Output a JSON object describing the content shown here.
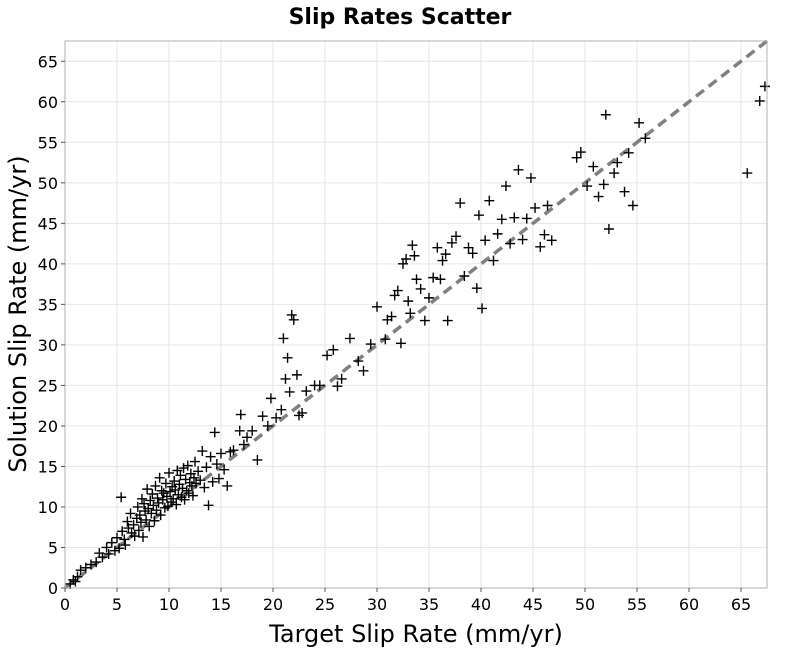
{
  "chart_data": {
    "type": "scatter",
    "title": "Slip Rates Scatter",
    "xlabel": "Target Slip Rate (mm/yr)",
    "ylabel": "Solution Slip Rate (mm/yr)",
    "xlim": [
      0,
      67.5
    ],
    "ylim": [
      0,
      67.5
    ],
    "xticks": [
      0,
      5,
      10,
      15,
      20,
      25,
      30,
      35,
      40,
      45,
      50,
      55,
      60,
      65
    ],
    "yticks": [
      0,
      5,
      10,
      15,
      20,
      25,
      30,
      35,
      40,
      45,
      50,
      55,
      60,
      65
    ],
    "grid": true,
    "marker": "plus",
    "marker_color": "#000000",
    "reference_line": {
      "style": "dashed",
      "color": "#808080",
      "x": [
        0,
        67.5
      ],
      "y": [
        0,
        67.5
      ]
    },
    "series": [
      {
        "points": [
          [
            0.5,
            0.5
          ],
          [
            0.8,
            1.0
          ],
          [
            1.0,
            0.8
          ],
          [
            1.2,
            1.4
          ],
          [
            1.5,
            2.2
          ],
          [
            2.0,
            2.5
          ],
          [
            2.5,
            2.9
          ],
          [
            3.0,
            3.2
          ],
          [
            3.3,
            4.3
          ],
          [
            3.6,
            3.8
          ],
          [
            4.0,
            5.0
          ],
          [
            4.2,
            4.2
          ],
          [
            4.5,
            5.6
          ],
          [
            4.8,
            4.6
          ],
          [
            5.0,
            6.2
          ],
          [
            5.2,
            4.9
          ],
          [
            5.4,
            11.2
          ],
          [
            5.5,
            7.0
          ],
          [
            5.7,
            6.0
          ],
          [
            5.8,
            5.3
          ],
          [
            6.0,
            8.2
          ],
          [
            6.1,
            7.4
          ],
          [
            6.3,
            9.2
          ],
          [
            6.4,
            6.8
          ],
          [
            6.6,
            7.8
          ],
          [
            6.7,
            6.4
          ],
          [
            6.9,
            8.6
          ],
          [
            7.0,
            10.0
          ],
          [
            7.1,
            7.1
          ],
          [
            7.2,
            9.0
          ],
          [
            7.3,
            8.1
          ],
          [
            7.4,
            11.0
          ],
          [
            7.5,
            6.3
          ],
          [
            7.6,
            10.4
          ],
          [
            7.7,
            9.5
          ],
          [
            7.8,
            8.4
          ],
          [
            7.9,
            12.2
          ],
          [
            8.0,
            9.8
          ],
          [
            8.1,
            7.6
          ],
          [
            8.2,
            10.8
          ],
          [
            8.3,
            9.2
          ],
          [
            8.4,
            11.6
          ],
          [
            8.5,
            10.2
          ],
          [
            8.6,
            8.3
          ],
          [
            8.7,
            12.6
          ],
          [
            8.8,
            9.6
          ],
          [
            8.9,
            11.1
          ],
          [
            9.0,
            10.5
          ],
          [
            9.1,
            13.6
          ],
          [
            9.2,
            9.0
          ],
          [
            9.3,
            12.0
          ],
          [
            9.4,
            10.9
          ],
          [
            9.5,
            11.7
          ],
          [
            9.6,
            9.9
          ],
          [
            9.7,
            12.9
          ],
          [
            9.8,
            11.3
          ],
          [
            9.9,
            10.1
          ],
          [
            10.0,
            14.2
          ],
          [
            10.1,
            11.9
          ],
          [
            10.2,
            10.6
          ],
          [
            10.3,
            12.5
          ],
          [
            10.4,
            11.0
          ],
          [
            10.5,
            13.2
          ],
          [
            10.6,
            12.1
          ],
          [
            10.7,
            10.3
          ],
          [
            10.8,
            14.5
          ],
          [
            10.9,
            11.5
          ],
          [
            11.0,
            12.8
          ],
          [
            11.1,
            13.9
          ],
          [
            11.2,
            11.2
          ],
          [
            11.3,
            12.3
          ],
          [
            11.4,
            14.8
          ],
          [
            11.5,
            10.9
          ],
          [
            11.6,
            13.4
          ],
          [
            11.7,
            12.0
          ],
          [
            11.8,
            15.1
          ],
          [
            11.9,
            11.7
          ],
          [
            12.0,
            13.0
          ],
          [
            12.1,
            14.1
          ],
          [
            12.2,
            12.6
          ],
          [
            12.3,
            11.4
          ],
          [
            12.4,
            13.6
          ],
          [
            12.5,
            15.6
          ],
          [
            12.6,
            12.9
          ],
          [
            12.8,
            14.4
          ],
          [
            13.0,
            13.3
          ],
          [
            13.2,
            16.9
          ],
          [
            13.4,
            12.4
          ],
          [
            13.6,
            14.9
          ],
          [
            13.8,
            10.2
          ],
          [
            14.0,
            16.2
          ],
          [
            14.2,
            13.1
          ],
          [
            14.4,
            19.2
          ],
          [
            14.6,
            15.3
          ],
          [
            14.8,
            13.5
          ],
          [
            15.0,
            16.6
          ],
          [
            15.3,
            14.6
          ],
          [
            15.6,
            12.6
          ],
          [
            15.9,
            16.8
          ],
          [
            16.2,
            17.0
          ],
          [
            16.8,
            19.4
          ],
          [
            16.9,
            21.4
          ],
          [
            17.2,
            17.7
          ],
          [
            17.5,
            18.6
          ],
          [
            18.0,
            19.4
          ],
          [
            18.5,
            15.8
          ],
          [
            19.0,
            21.2
          ],
          [
            19.5,
            20.0
          ],
          [
            19.8,
            23.4
          ],
          [
            20.3,
            21.0
          ],
          [
            20.8,
            22.0
          ],
          [
            21.0,
            30.8
          ],
          [
            21.2,
            25.8
          ],
          [
            21.4,
            28.4
          ],
          [
            21.6,
            24.2
          ],
          [
            21.8,
            33.7
          ],
          [
            22.0,
            33.1
          ],
          [
            22.3,
            26.3
          ],
          [
            22.5,
            21.3
          ],
          [
            22.8,
            21.6
          ],
          [
            23.2,
            24.3
          ],
          [
            24.0,
            25.0
          ],
          [
            24.5,
            25.0
          ],
          [
            25.2,
            28.7
          ],
          [
            25.8,
            29.4
          ],
          [
            26.2,
            24.9
          ],
          [
            26.6,
            25.8
          ],
          [
            27.4,
            30.8
          ],
          [
            28.2,
            28.0
          ],
          [
            28.7,
            26.8
          ],
          [
            29.4,
            30.1
          ],
          [
            30.0,
            34.7
          ],
          [
            30.8,
            30.7
          ],
          [
            31.0,
            33.1
          ],
          [
            31.4,
            33.5
          ],
          [
            31.7,
            36.1
          ],
          [
            32.0,
            36.7
          ],
          [
            32.3,
            30.2
          ],
          [
            32.5,
            40.0
          ],
          [
            32.8,
            40.6
          ],
          [
            33.0,
            35.4
          ],
          [
            33.2,
            33.9
          ],
          [
            33.4,
            42.3
          ],
          [
            33.6,
            41.0
          ],
          [
            33.8,
            38.1
          ],
          [
            34.2,
            36.9
          ],
          [
            34.6,
            33.0
          ],
          [
            35.0,
            35.8
          ],
          [
            35.4,
            38.3
          ],
          [
            35.8,
            42.0
          ],
          [
            36.1,
            38.1
          ],
          [
            36.3,
            40.4
          ],
          [
            36.6,
            41.2
          ],
          [
            36.8,
            33.0
          ],
          [
            37.2,
            42.6
          ],
          [
            37.6,
            43.4
          ],
          [
            38.0,
            47.5
          ],
          [
            38.4,
            38.5
          ],
          [
            38.8,
            42.0
          ],
          [
            39.2,
            41.3
          ],
          [
            39.6,
            37.0
          ],
          [
            39.8,
            46.0
          ],
          [
            40.1,
            34.5
          ],
          [
            40.4,
            42.9
          ],
          [
            40.8,
            47.8
          ],
          [
            41.2,
            40.4
          ],
          [
            41.6,
            43.7
          ],
          [
            42.0,
            45.5
          ],
          [
            42.4,
            49.6
          ],
          [
            42.8,
            42.5
          ],
          [
            43.2,
            45.7
          ],
          [
            43.6,
            51.6
          ],
          [
            44.0,
            43.0
          ],
          [
            44.4,
            45.6
          ],
          [
            44.8,
            50.6
          ],
          [
            45.2,
            46.9
          ],
          [
            45.7,
            42.1
          ],
          [
            46.1,
            43.6
          ],
          [
            46.4,
            47.2
          ],
          [
            46.8,
            42.9
          ],
          [
            49.2,
            53.1
          ],
          [
            49.6,
            53.8
          ],
          [
            50.2,
            49.6
          ],
          [
            50.8,
            52.0
          ],
          [
            51.3,
            48.3
          ],
          [
            51.8,
            49.8
          ],
          [
            52.0,
            58.4
          ],
          [
            52.3,
            44.3
          ],
          [
            52.8,
            51.2
          ],
          [
            53.1,
            52.5
          ],
          [
            53.8,
            48.9
          ],
          [
            54.2,
            53.7
          ],
          [
            54.6,
            47.2
          ],
          [
            55.2,
            57.4
          ],
          [
            55.8,
            55.5
          ],
          [
            65.6,
            51.2
          ],
          [
            66.8,
            60.1
          ],
          [
            67.3,
            61.9
          ]
        ]
      }
    ]
  }
}
